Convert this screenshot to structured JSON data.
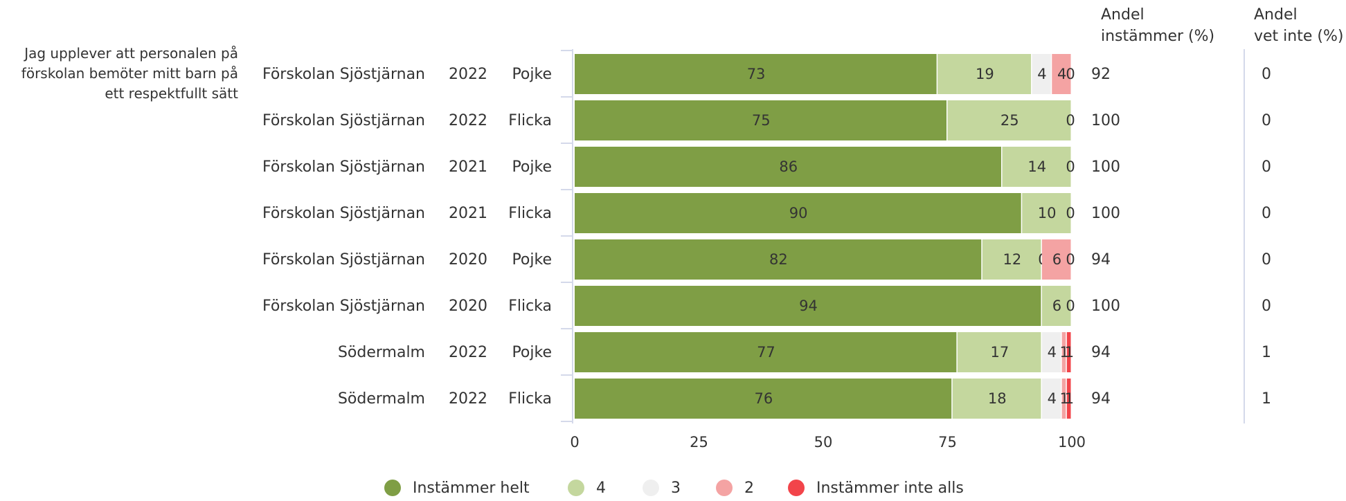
{
  "chart_data": {
    "type": "bar",
    "stacked": true,
    "orientation": "horizontal",
    "question": [
      "Jag upplever att personalen på",
      "förskolan bemöter mitt barn på",
      "ett respektfullt sätt"
    ],
    "column_headers": {
      "agree": [
        "Andel",
        "instämmer (%)"
      ],
      "dontknow": [
        "Andel",
        "vet inte (%)"
      ]
    },
    "rows": [
      {
        "unit": "Förskolan Sjöstjärnan",
        "year": "2022",
        "gender": "Pojke",
        "values": [
          73,
          19,
          4,
          4,
          0
        ],
        "labels": [
          "73",
          "19",
          "4",
          "4",
          "0"
        ],
        "agree": "92",
        "dontknow": "0"
      },
      {
        "unit": "Förskolan Sjöstjärnan",
        "year": "2022",
        "gender": "Flicka",
        "values": [
          75,
          25,
          0,
          0,
          0
        ],
        "labels": [
          "75",
          "25",
          "",
          "",
          "0"
        ],
        "agree": "100",
        "dontknow": "0"
      },
      {
        "unit": "Förskolan Sjöstjärnan",
        "year": "2021",
        "gender": "Pojke",
        "values": [
          86,
          14,
          0,
          0,
          0
        ],
        "labels": [
          "86",
          "14",
          "",
          "",
          "0"
        ],
        "agree": "100",
        "dontknow": "0"
      },
      {
        "unit": "Förskolan Sjöstjärnan",
        "year": "2021",
        "gender": "Flicka",
        "values": [
          90,
          10,
          0,
          0,
          0
        ],
        "labels": [
          "90",
          "10",
          "",
          "",
          "0"
        ],
        "agree": "100",
        "dontknow": "0"
      },
      {
        "unit": "Förskolan Sjöstjärnan",
        "year": "2020",
        "gender": "Pojke",
        "values": [
          82,
          12,
          0,
          6,
          0
        ],
        "labels": [
          "82",
          "12",
          "0",
          "6",
          "0"
        ],
        "agree": "94",
        "dontknow": "0"
      },
      {
        "unit": "Förskolan Sjöstjärnan",
        "year": "2020",
        "gender": "Flicka",
        "values": [
          94,
          6,
          0,
          0,
          0
        ],
        "labels": [
          "94",
          "6",
          "",
          "",
          "0"
        ],
        "agree": "100",
        "dontknow": "0"
      },
      {
        "unit": "Södermalm",
        "year": "2022",
        "gender": "Pojke",
        "values": [
          77,
          17,
          4,
          1,
          1
        ],
        "labels": [
          "77",
          "17",
          "4",
          "1",
          "1"
        ],
        "agree": "94",
        "dontknow": "1"
      },
      {
        "unit": "Södermalm",
        "year": "2022",
        "gender": "Flicka",
        "values": [
          76,
          18,
          4,
          1,
          1
        ],
        "labels": [
          "76",
          "18",
          "4",
          "1",
          "1"
        ],
        "agree": "94",
        "dontknow": "1"
      }
    ],
    "series": [
      {
        "name": "Instämmer helt",
        "color": "#7f9e45",
        "label_color": "#ffffff"
      },
      {
        "name": "4",
        "color": "#c4d79e",
        "label_color": "#ffffff"
      },
      {
        "name": "3",
        "color": "#efefef",
        "label_color": "#111111"
      },
      {
        "name": "2",
        "color": "#f4a3a3",
        "label_color": "#111111"
      },
      {
        "name": "Instämmer inte alls",
        "color": "#f2444a",
        "label_color": "#dddddd"
      }
    ],
    "xlim": [
      0,
      100
    ],
    "xticks": [
      "0",
      "25",
      "50",
      "75",
      "100"
    ],
    "grid": false,
    "legend_position": "bottom"
  }
}
